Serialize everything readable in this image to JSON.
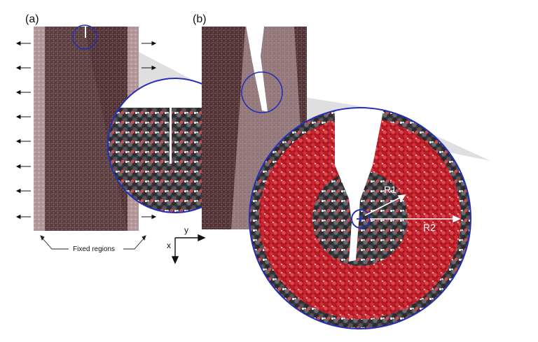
{
  "figure": {
    "panel_a_label": "(a)",
    "panel_b_label": "(b)",
    "fixed_regions_label": "Fixed regions",
    "axis_x_label": "x",
    "axis_y_label": "y",
    "radius_1_label": "R1",
    "radius_2_label": "R2"
  },
  "colors": {
    "slab_dark": "#5a3a3d",
    "slab_light": "#c9b1b3",
    "atom_dark": "#2f2f33",
    "atom_red": "#c8202a",
    "atom_white": "#eeeeee",
    "circle_outline": "#2430b8",
    "zoom_cone": "#d4d4d4"
  },
  "icons": {
    "left_arrows": "arrow-left-icon",
    "right_arrows": "arrow-right-icon",
    "axes": "coordinate-axes-icon"
  }
}
